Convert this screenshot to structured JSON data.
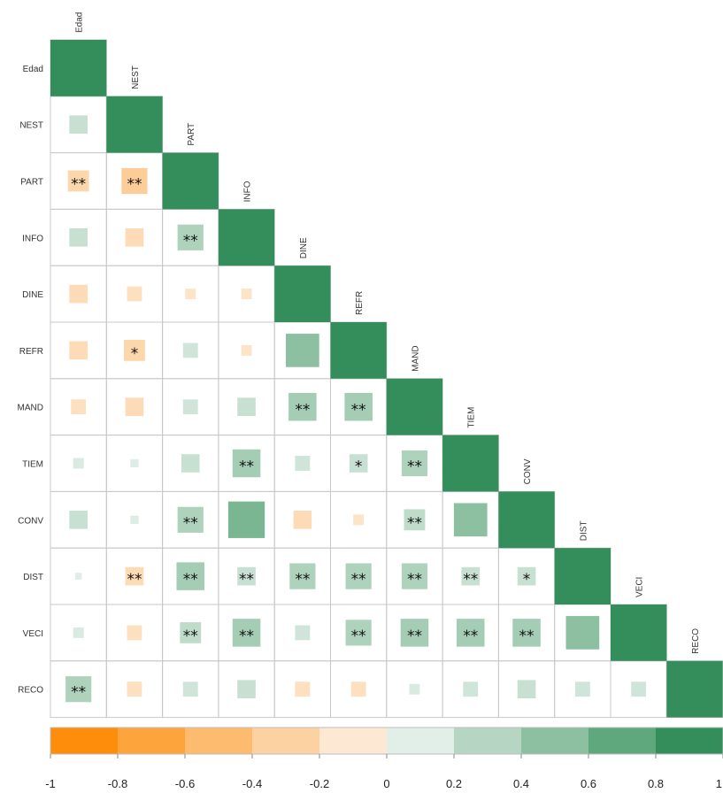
{
  "chart_data": {
    "type": "heatmap",
    "title": "",
    "xlabel": "",
    "ylabel": "",
    "variables": [
      "Edad",
      "NEST",
      "PART",
      "INFO",
      "DINE",
      "REFR",
      "MAND",
      "TIEM",
      "CONV",
      "DIST",
      "VECI",
      "RECO"
    ],
    "matrix_lower_triangle": [
      [
        1.0
      ],
      [
        0.15,
        1.0
      ],
      [
        -0.2,
        -0.3,
        1.0
      ],
      [
        0.15,
        -0.15,
        0.3,
        1.0
      ],
      [
        -0.15,
        -0.1,
        -0.05,
        -0.05,
        1.0
      ],
      [
        -0.15,
        -0.2,
        0.1,
        -0.05,
        0.5,
        1.0
      ],
      [
        -0.1,
        -0.15,
        0.1,
        0.15,
        0.35,
        0.35,
        1.0
      ],
      [
        0.05,
        0.03,
        0.15,
        0.35,
        0.1,
        0.15,
        0.3,
        1.0
      ],
      [
        0.15,
        0.03,
        0.3,
        0.6,
        -0.15,
        -0.05,
        0.2,
        0.5,
        1.0
      ],
      [
        0.02,
        -0.15,
        0.35,
        0.15,
        0.3,
        0.3,
        0.3,
        0.15,
        0.15,
        1.0
      ],
      [
        0.05,
        -0.1,
        0.2,
        0.35,
        0.1,
        0.3,
        0.35,
        0.35,
        0.35,
        0.5,
        1.0
      ],
      [
        0.3,
        -0.1,
        0.1,
        0.15,
        -0.1,
        -0.1,
        0.05,
        0.1,
        0.15,
        0.1,
        0.1,
        1.0
      ]
    ],
    "significance_lower_triangle": [
      [
        ""
      ],
      [
        "",
        ""
      ],
      [
        "**",
        "**",
        ""
      ],
      [
        "",
        "",
        "**",
        ""
      ],
      [
        "",
        "",
        "",
        "",
        ""
      ],
      [
        "",
        "*",
        "",
        "",
        "",
        ""
      ],
      [
        "",
        "",
        "",
        "",
        "**",
        "**",
        ""
      ],
      [
        "",
        "",
        "",
        "**",
        "",
        "*",
        "**",
        ""
      ],
      [
        "",
        "",
        "**",
        "",
        "",
        "",
        "**",
        "",
        ""
      ],
      [
        "",
        "**",
        "**",
        "**",
        "**",
        "**",
        "**",
        "**",
        "*",
        ""
      ],
      [
        "",
        "",
        "**",
        "**",
        "",
        "**",
        "**",
        "**",
        "**",
        "",
        ""
      ],
      [
        "**",
        "",
        "",
        "",
        "",
        "",
        "",
        "",
        "",
        "",
        "",
        ""
      ]
    ],
    "colorbar": {
      "range": [
        -1,
        1
      ],
      "tick_labels": [
        "-1",
        "-0.8",
        "-0.6",
        "-0.4",
        "-0.2",
        "0",
        "0.2",
        "0.4",
        "0.6",
        "0.8",
        "1"
      ],
      "colors": [
        "#fd8d0a",
        "#fea43d",
        "#fdbb6f",
        "#fdd2a2",
        "#fde9d3",
        "#e2efe8",
        "#b6d6c3",
        "#8cc0a0",
        "#5fa87d",
        "#348e5b"
      ]
    },
    "diagonal_color": "#348e5b",
    "grid": true,
    "legend": "bottom"
  }
}
